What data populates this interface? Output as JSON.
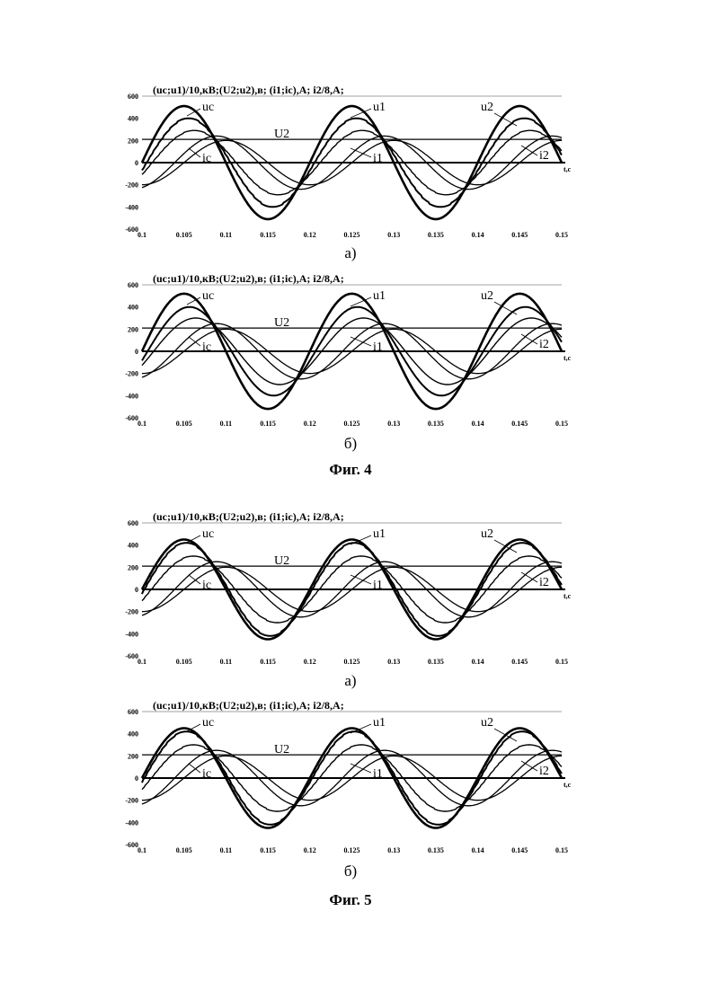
{
  "charts": [
    {
      "id": "fig4a",
      "caption": "а)",
      "chart_data": {
        "type": "line",
        "title": "(uc;u1)/10,кВ;(U2;u2),в; (i1;ic),A; i2/8,A;",
        "xlabel": "t,c",
        "x_ticks": [
          "0.1",
          "0.105",
          "0.11",
          "0.115",
          "0.12",
          "0.125",
          "0.13",
          "0.135",
          "0.14",
          "0.145",
          "0.15"
        ],
        "y_ticks": [
          "600",
          "400",
          "200",
          "0",
          "-200",
          "-400",
          "-600"
        ],
        "xlim": [
          0.1,
          0.15
        ],
        "ylim": [
          -600,
          600
        ],
        "series": [
          {
            "name": "uc",
            "amplitude": 510,
            "phase_deg": 0,
            "offset": 0,
            "stepped": false
          },
          {
            "name": "u1",
            "amplitude": 400,
            "phase_deg": -10,
            "offset": 0,
            "stepped": true
          },
          {
            "name": "u2",
            "amplitude": 290,
            "phase_deg": -22,
            "offset": 0,
            "stepped": true
          },
          {
            "name": "i1",
            "amplitude": 240,
            "phase_deg": -70,
            "offset": 0,
            "stepped": false
          },
          {
            "name": "ic",
            "amplitude": 200,
            "phase_deg": -90,
            "offset": 0,
            "stepped": false
          },
          {
            "name": "U2",
            "amplitude": 0,
            "phase_deg": 0,
            "offset": 210,
            "stepped": false
          },
          {
            "name": "i2",
            "amplitude": 0,
            "phase_deg": 0,
            "offset": 0,
            "stepped": false
          }
        ],
        "labels": [
          "uc",
          "u1",
          "u2",
          "U2",
          "ic",
          "i1",
          "i2"
        ]
      }
    },
    {
      "id": "fig4b",
      "caption": "б)",
      "chart_data": {
        "type": "line",
        "title": "(uc;u1)/10,кВ;(U2;u2),в; (i1;ic),A; i2/8,A;",
        "xlabel": "t,c",
        "x_ticks": [
          "0.1",
          "0.105",
          "0.11",
          "0.115",
          "0.12",
          "0.125",
          "0.13",
          "0.135",
          "0.14",
          "0.145",
          "0.15"
        ],
        "y_ticks": [
          "600",
          "400",
          "200",
          "0",
          "-200",
          "-400",
          "-600"
        ],
        "xlim": [
          0.1,
          0.15
        ],
        "ylim": [
          -600,
          600
        ],
        "series": [
          {
            "name": "uc",
            "amplitude": 520,
            "phase_deg": 0,
            "offset": 0,
            "stepped": false
          },
          {
            "name": "u1",
            "amplitude": 400,
            "phase_deg": -12,
            "offset": 0,
            "stepped": false
          },
          {
            "name": "u2",
            "amplitude": 300,
            "phase_deg": -25,
            "offset": 0,
            "stepped": false
          },
          {
            "name": "i1",
            "amplitude": 250,
            "phase_deg": -70,
            "offset": 0,
            "stepped": false
          },
          {
            "name": "ic",
            "amplitude": 200,
            "phase_deg": -90,
            "offset": 0,
            "stepped": false
          },
          {
            "name": "U2",
            "amplitude": 0,
            "phase_deg": 0,
            "offset": 210,
            "stepped": false
          },
          {
            "name": "i2",
            "amplitude": 0,
            "phase_deg": 0,
            "offset": 0,
            "stepped": false
          }
        ],
        "labels": [
          "uc",
          "u1",
          "u2",
          "U2",
          "ic",
          "i1",
          "i2"
        ]
      }
    },
    {
      "id": "fig5a",
      "caption": "а)",
      "chart_data": {
        "type": "line",
        "title": "(uc;u1)/10,кВ;(U2;u2),в; (i1;ic),A; i2/8,A;",
        "xlabel": "t,c",
        "x_ticks": [
          "0.1",
          "0.105",
          "0.11",
          "0.115",
          "0.12",
          "0.125",
          "0.13",
          "0.135",
          "0.14",
          "0.145",
          "0.15"
        ],
        "y_ticks": [
          "600",
          "400",
          "200",
          "0",
          "-200",
          "-400",
          "-600"
        ],
        "xlim": [
          0.1,
          0.15
        ],
        "ylim": [
          -600,
          600
        ],
        "series": [
          {
            "name": "uc",
            "amplitude": 450,
            "phase_deg": 0,
            "offset": 0,
            "stepped": false
          },
          {
            "name": "u1",
            "amplitude": 420,
            "phase_deg": -5,
            "offset": 0,
            "stepped": true
          },
          {
            "name": "u2",
            "amplitude": 300,
            "phase_deg": -20,
            "offset": 0,
            "stepped": true
          },
          {
            "name": "i1",
            "amplitude": 250,
            "phase_deg": -70,
            "offset": 0,
            "stepped": false
          },
          {
            "name": "ic",
            "amplitude": 200,
            "phase_deg": -90,
            "offset": 0,
            "stepped": false
          },
          {
            "name": "U2",
            "amplitude": 0,
            "phase_deg": 0,
            "offset": 210,
            "stepped": false
          },
          {
            "name": "i2",
            "amplitude": 0,
            "phase_deg": 0,
            "offset": 0,
            "stepped": false
          }
        ],
        "labels": [
          "uc",
          "u1",
          "u2",
          "U2",
          "ic",
          "i1",
          "i2"
        ]
      }
    },
    {
      "id": "fig5b",
      "caption": "б)",
      "chart_data": {
        "type": "line",
        "title": "(uc;u1)/10,кВ;(U2;u2),в; (i1;ic),A; i2/8,A;",
        "xlabel": "t,c",
        "x_ticks": [
          "0.1",
          "0.105",
          "0.11",
          "0.115",
          "0.12",
          "0.125",
          "0.13",
          "0.135",
          "0.14",
          "0.145",
          "0.15"
        ],
        "y_ticks": [
          "600",
          "400",
          "200",
          "0",
          "-200",
          "-400",
          "-600"
        ],
        "xlim": [
          0.1,
          0.15
        ],
        "ylim": [
          -600,
          600
        ],
        "series": [
          {
            "name": "uc",
            "amplitude": 450,
            "phase_deg": 0,
            "offset": 0,
            "stepped": false
          },
          {
            "name": "u1",
            "amplitude": 420,
            "phase_deg": -5,
            "offset": 0,
            "stepped": true
          },
          {
            "name": "u2",
            "amplitude": 300,
            "phase_deg": -20,
            "offset": 0,
            "stepped": true
          },
          {
            "name": "i1",
            "amplitude": 250,
            "phase_deg": -70,
            "offset": 0,
            "stepped": false
          },
          {
            "name": "ic",
            "amplitude": 200,
            "phase_deg": -90,
            "offset": 0,
            "stepped": false
          },
          {
            "name": "U2",
            "amplitude": 0,
            "phase_deg": 0,
            "offset": 210,
            "stepped": false
          },
          {
            "name": "i2",
            "amplitude": 0,
            "phase_deg": 0,
            "offset": 0,
            "stepped": false
          }
        ],
        "labels": [
          "uc",
          "u1",
          "u2",
          "U2",
          "ic",
          "i1",
          "i2"
        ]
      }
    }
  ],
  "figure_captions": [
    "Фиг. 4",
    "Фиг. 5"
  ],
  "frequency_hz": 50
}
